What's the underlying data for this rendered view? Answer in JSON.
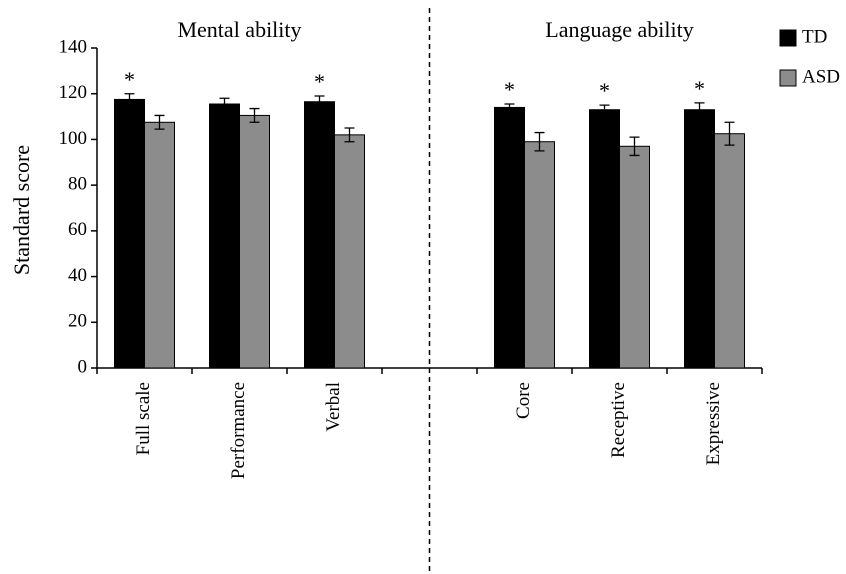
{
  "chart_data": {
    "type": "bar",
    "y_label": "Standard score",
    "groups": [
      "Mental ability",
      "Language ability"
    ],
    "categories": [
      "Full scale",
      "Performance",
      "Verbal",
      null,
      "Core",
      "Receptive",
      "Expressive"
    ],
    "significance": [
      "*",
      null,
      "*",
      null,
      "*",
      "*",
      "*"
    ],
    "series": [
      {
        "name": "TD",
        "color": "#000000",
        "values": [
          117.5,
          115.5,
          116.5,
          null,
          114,
          113,
          113
        ],
        "errors": [
          2.5,
          2.5,
          2.5,
          null,
          1.5,
          2,
          3
        ]
      },
      {
        "name": "ASD",
        "color": "#8c8c8c",
        "values": [
          107.5,
          110.5,
          102,
          null,
          99,
          97,
          102.5
        ],
        "errors": [
          3,
          3,
          3,
          null,
          4,
          4,
          5
        ]
      }
    ],
    "ylim": [
      0,
      140
    ],
    "yticks": [
      0,
      20,
      40,
      60,
      80,
      100,
      120,
      140
    ],
    "legend": "top-right"
  }
}
